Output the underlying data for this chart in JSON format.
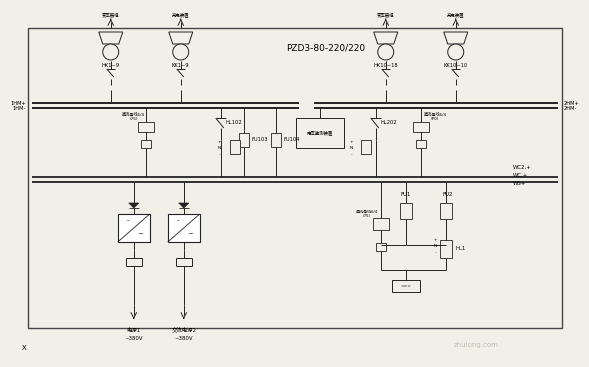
{
  "bg_color": "#f0efe8",
  "border_color": "#444444",
  "line_color": "#222222",
  "title": "PZD3-80-220/220",
  "watermark": "zhulong.com",
  "label_hk1_9": "HK1~9",
  "label_kk1_9": "KK1~9",
  "label_hk10_18": "HK10~18",
  "label_kk10_10": "KK10~10",
  "label_1hm_plus": "1HM+",
  "label_1hm_minus": "1HM-",
  "label_2hm_plus": "2HM+",
  "label_2hm_minus": "2HM-",
  "label_hl102": "HL102",
  "label_hl202": "HL202",
  "label_fu103": "FU103",
  "label_fu104": "FU104",
  "label_fu1": "FU1",
  "label_fu2": "FU2",
  "label_hl1": "HL1",
  "label_wc2": "WC2,+",
  "label_wc4": "WC,+",
  "label_ws": "WS+",
  "label_x": "X",
  "label_bottom1a": "电源1",
  "label_bottom1b": "~380V",
  "label_bottom2a": "交流电源2",
  "label_bottom2b": "~380V",
  "label_zhiliu1": "直流母线6/4\n(75)",
  "label_zhiliu2": "直流母线6/4\n(75)",
  "label_zhiliu3": "直流母线6/4\n(P0)",
  "label_dianya": "电压监测装置",
  "label_top1": "变压器组",
  "label_top2": "充电装置",
  "label_top3": "变压器组",
  "label_top4": "充电装置",
  "font_size_title": 6.5,
  "font_size_label": 4.2,
  "font_size_small": 3.2,
  "font_size_wm": 5.0
}
